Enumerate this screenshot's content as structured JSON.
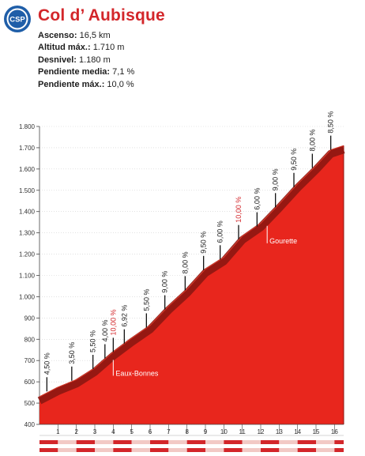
{
  "header": {
    "logo_text": "CSP",
    "title": "Col d’ Aubisque",
    "brand_color": "#d3262a"
  },
  "stats": [
    {
      "label": "Ascenso:",
      "value": "16,5 km"
    },
    {
      "label": "Altitud máx.:",
      "value": "1.710 m"
    },
    {
      "label": "Desnivel:",
      "value": "1.180 m"
    },
    {
      "label": "Pendiente media:",
      "value": "7,1 %"
    },
    {
      "label": "Pendiente máx.:",
      "value": "10,0 %"
    }
  ],
  "colors": {
    "fill": "#e8261d",
    "edge": "#8d1712",
    "edge_light": "#d63a2a",
    "label": "#1d1d1d",
    "highlight": "#d3262a",
    "axis": "#444444"
  },
  "chart_data": {
    "type": "area",
    "xlim": [
      0,
      16.5
    ],
    "ylim": [
      400,
      1800
    ],
    "x_ticks": [
      1,
      2,
      3,
      4,
      5,
      6,
      7,
      8,
      9,
      10,
      11,
      12,
      13,
      14,
      15,
      16
    ],
    "x_tick_labels": [
      "1",
      "2",
      "3",
      "4",
      "5",
      "6",
      "7",
      "8",
      "9",
      "10",
      "11",
      "12",
      "13",
      "14",
      "15",
      "16"
    ],
    "y_ticks": [
      400,
      500,
      600,
      700,
      800,
      900,
      1000,
      1100,
      1200,
      1300,
      1400,
      1500,
      1600,
      1700,
      1800
    ],
    "y_tick_labels": [
      "400",
      "500",
      "600",
      "700",
      "800",
      "900",
      "1.000",
      "1.100",
      "1.200",
      "1.300",
      "1.400",
      "1.500",
      "1.600",
      "1.700",
      "1.800"
    ],
    "profile": [
      {
        "x": 0,
        "y": 530
      },
      {
        "x": 1,
        "y": 575
      },
      {
        "x": 2,
        "y": 610
      },
      {
        "x": 3,
        "y": 665
      },
      {
        "x": 4,
        "y": 740
      },
      {
        "x": 5,
        "y": 805
      },
      {
        "x": 6,
        "y": 865
      },
      {
        "x": 7,
        "y": 955
      },
      {
        "x": 8,
        "y": 1035
      },
      {
        "x": 9,
        "y": 1130
      },
      {
        "x": 10,
        "y": 1185
      },
      {
        "x": 11,
        "y": 1285
      },
      {
        "x": 12,
        "y": 1345
      },
      {
        "x": 13,
        "y": 1435
      },
      {
        "x": 14,
        "y": 1530
      },
      {
        "x": 15,
        "y": 1615
      },
      {
        "x": 15.8,
        "y": 1690
      },
      {
        "x": 16.5,
        "y": 1710
      }
    ],
    "segment_gradients": [
      {
        "x": 0.4,
        "y": 555,
        "label": "4,50 %",
        "highlight": false
      },
      {
        "x": 1.75,
        "y": 605,
        "label": "3,50 %",
        "highlight": false
      },
      {
        "x": 2.9,
        "y": 660,
        "label": "5,50 %",
        "highlight": false
      },
      {
        "x": 3.55,
        "y": 710,
        "label": "4,00 %",
        "highlight": false
      },
      {
        "x": 4.0,
        "y": 740,
        "label": "10,00 %",
        "highlight": true
      },
      {
        "x": 4.6,
        "y": 780,
        "label": "6,92 %",
        "highlight": false
      },
      {
        "x": 5.8,
        "y": 855,
        "label": "5,50 %",
        "highlight": false
      },
      {
        "x": 6.8,
        "y": 940,
        "label": "9,00 %",
        "highlight": false
      },
      {
        "x": 7.9,
        "y": 1030,
        "label": "8,00 %",
        "highlight": false
      },
      {
        "x": 8.9,
        "y": 1125,
        "label": "9,50 %",
        "highlight": false
      },
      {
        "x": 9.8,
        "y": 1175,
        "label": "6,00 %",
        "highlight": false
      },
      {
        "x": 10.8,
        "y": 1270,
        "label": "10,00 %",
        "highlight": true
      },
      {
        "x": 11.8,
        "y": 1330,
        "label": "6,00 %",
        "highlight": false
      },
      {
        "x": 12.8,
        "y": 1420,
        "label": "9,00 %",
        "highlight": false
      },
      {
        "x": 13.8,
        "y": 1515,
        "label": "9,50 %",
        "highlight": false
      },
      {
        "x": 14.8,
        "y": 1605,
        "label": "8,00 %",
        "highlight": false
      },
      {
        "x": 15.8,
        "y": 1690,
        "label": "8,50 %",
        "highlight": false
      }
    ],
    "places": [
      {
        "name": "Eaux-Bonnes",
        "x": 4.0,
        "y": 740
      },
      {
        "name": "Gourette",
        "x": 12.35,
        "y": 1370
      }
    ]
  }
}
